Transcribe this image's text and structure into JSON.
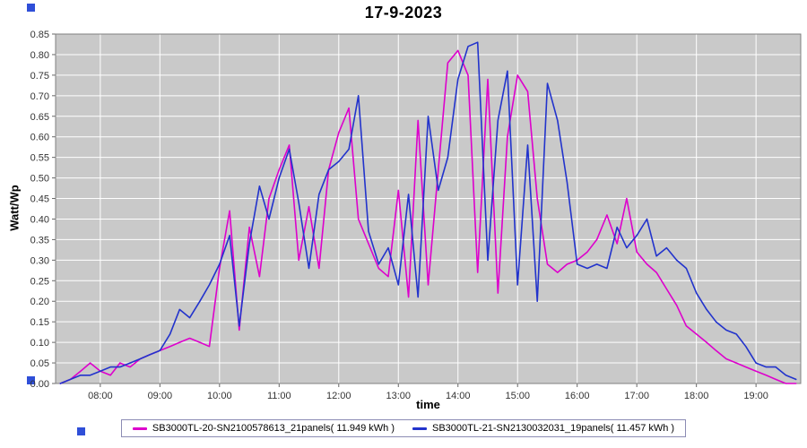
{
  "title": "17-9-2023",
  "colors": {
    "series1": "#dd00cc",
    "series2": "#2233cc",
    "plot_bg": "#c9c9c9",
    "grid": "#ffffff",
    "plot_border": "#808080",
    "tick": "#666666",
    "handle": "#2f4fd8"
  },
  "axes": {
    "y_label": "Watt/Wp",
    "x_label": "time",
    "y_ticks": [
      "0.00",
      "0.05",
      "0.10",
      "0.15",
      "0.20",
      "0.25",
      "0.30",
      "0.35",
      "0.40",
      "0.45",
      "0.50",
      "0.55",
      "0.60",
      "0.65",
      "0.70",
      "0.75",
      "0.80",
      "0.85"
    ],
    "x_ticks": [
      {
        "label": "08:00",
        "hour": 8
      },
      {
        "label": "09:00",
        "hour": 9
      },
      {
        "label": "10:00",
        "hour": 10
      },
      {
        "label": "11:00",
        "hour": 11
      },
      {
        "label": "12:00",
        "hour": 12
      },
      {
        "label": "13:00",
        "hour": 13
      },
      {
        "label": "14:00",
        "hour": 14
      },
      {
        "label": "15:00",
        "hour": 15
      },
      {
        "label": "16:00",
        "hour": 16
      },
      {
        "label": "17:00",
        "hour": 17
      },
      {
        "label": "18:00",
        "hour": 18
      },
      {
        "label": "19:00",
        "hour": 19
      }
    ]
  },
  "legend": {
    "entries": [
      {
        "label": "SB3000TL-20-SN2100578613_21panels( 11.949 kWh )",
        "color": "#dd00cc"
      },
      {
        "label": "SB3000TL-21-SN2130032031_19panels( 11.457 kWh )",
        "color": "#2233cc"
      }
    ]
  },
  "chart_data": {
    "type": "line",
    "title": "17-9-2023",
    "xlabel": "time",
    "ylabel": "Watt/Wp",
    "xlim": [
      7.25,
      19.75
    ],
    "ylim": [
      0,
      0.85
    ],
    "x_unit": "hour_of_day",
    "grid": true,
    "legend_position": "bottom",
    "x": [
      7.33,
      7.5,
      7.67,
      7.83,
      8,
      8.17,
      8.33,
      8.5,
      8.67,
      8.83,
      9,
      9.17,
      9.33,
      9.5,
      9.67,
      9.83,
      10,
      10.17,
      10.33,
      10.5,
      10.67,
      10.83,
      11,
      11.17,
      11.33,
      11.5,
      11.67,
      11.83,
      12,
      12.17,
      12.33,
      12.5,
      12.67,
      12.83,
      13,
      13.17,
      13.33,
      13.5,
      13.67,
      13.83,
      14,
      14.17,
      14.33,
      14.5,
      14.67,
      14.83,
      15,
      15.17,
      15.33,
      15.5,
      15.67,
      15.83,
      16,
      16.17,
      16.33,
      16.5,
      16.67,
      16.83,
      17,
      17.17,
      17.33,
      17.5,
      17.67,
      17.83,
      18,
      18.17,
      18.33,
      18.5,
      18.67,
      18.83,
      19,
      19.17,
      19.33,
      19.5,
      19.67
    ],
    "series": [
      {
        "name": "SB3000TL-20-SN2100578613_21panels( 11.949 kWh )",
        "color": "#dd00cc",
        "values": [
          0.0,
          0.01,
          0.03,
          0.05,
          0.03,
          0.02,
          0.05,
          0.04,
          0.06,
          0.07,
          0.08,
          0.09,
          0.1,
          0.11,
          0.1,
          0.09,
          0.28,
          0.42,
          0.13,
          0.38,
          0.26,
          0.45,
          0.52,
          0.58,
          0.3,
          0.43,
          0.28,
          0.52,
          0.61,
          0.67,
          0.4,
          0.34,
          0.28,
          0.26,
          0.47,
          0.21,
          0.64,
          0.24,
          0.52,
          0.78,
          0.81,
          0.75,
          0.27,
          0.74,
          0.22,
          0.6,
          0.75,
          0.71,
          0.45,
          0.29,
          0.27,
          0.29,
          0.3,
          0.32,
          0.35,
          0.41,
          0.34,
          0.45,
          0.32,
          0.29,
          0.27,
          0.23,
          0.19,
          0.14,
          0.12,
          0.1,
          0.08,
          0.06,
          0.05,
          0.04,
          0.03,
          0.02,
          0.01,
          0.0,
          0.0
        ]
      },
      {
        "name": "SB3000TL-21-SN2130032031_19panels( 11.457 kWh )",
        "color": "#2233cc",
        "values": [
          0.0,
          0.01,
          0.02,
          0.02,
          0.03,
          0.04,
          0.04,
          0.05,
          0.06,
          0.07,
          0.08,
          0.12,
          0.18,
          0.16,
          0.2,
          0.24,
          0.29,
          0.36,
          0.14,
          0.34,
          0.48,
          0.4,
          0.5,
          0.57,
          0.44,
          0.28,
          0.46,
          0.52,
          0.54,
          0.57,
          0.7,
          0.37,
          0.29,
          0.33,
          0.24,
          0.46,
          0.21,
          0.65,
          0.47,
          0.55,
          0.74,
          0.82,
          0.83,
          0.3,
          0.64,
          0.76,
          0.24,
          0.58,
          0.2,
          0.73,
          0.64,
          0.49,
          0.29,
          0.28,
          0.29,
          0.28,
          0.38,
          0.33,
          0.36,
          0.4,
          0.31,
          0.33,
          0.3,
          0.28,
          0.22,
          0.18,
          0.15,
          0.13,
          0.12,
          0.09,
          0.05,
          0.04,
          0.04,
          0.02,
          0.01
        ]
      }
    ]
  }
}
